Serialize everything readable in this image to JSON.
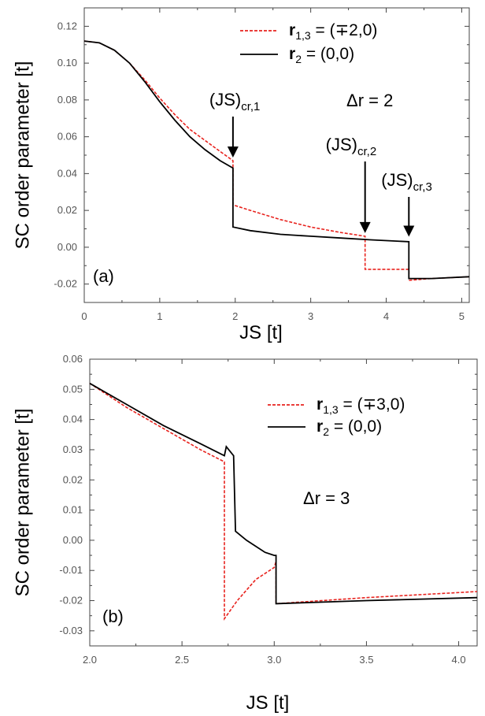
{
  "chart_data": [
    {
      "type": "line",
      "panel_label": "(a)",
      "xlabel": "JS [t]",
      "ylabel": "SC order parameter [t]",
      "xlim": [
        0,
        5.1
      ],
      "ylim": [
        -0.03,
        0.13
      ],
      "xticks": [
        0,
        1,
        2,
        3,
        4,
        5
      ],
      "yticks": [
        -0.02,
        0.0,
        0.02,
        0.04,
        0.06,
        0.08,
        0.1,
        0.12
      ],
      "ytick_labels": [
        "-0.02",
        "0.00",
        "0.02",
        "0.04",
        "0.06",
        "0.08",
        "0.10",
        "0.12"
      ],
      "grid": false,
      "legend_position": "top-right",
      "annotation": "Δr = 2",
      "arrows": [
        {
          "text": "(JS)",
          "sub": "cr,1",
          "x": 1.97,
          "y_tip": 0.047
        },
        {
          "text": "(JS)",
          "sub": "cr,2",
          "x": 3.72,
          "y_tip": 0.006
        },
        {
          "text": "(JS)",
          "sub": "cr,3",
          "x": 4.3,
          "y_tip": 0.004
        }
      ],
      "series": [
        {
          "name_bold": "r",
          "name_sub": "1,3",
          "name_rest": " = (∓2,0)",
          "color": "#e8231e",
          "dash": "dashed",
          "x": [
            0,
            0.2,
            0.4,
            0.6,
            0.8,
            1.0,
            1.2,
            1.4,
            1.6,
            1.8,
            1.97,
            1.97,
            2.2,
            2.6,
            3.0,
            3.4,
            3.72,
            3.72,
            4.3,
            4.3,
            4.6,
            5.1
          ],
          "y": [
            0.112,
            0.111,
            0.107,
            0.1,
            0.091,
            0.081,
            0.072,
            0.064,
            0.058,
            0.052,
            0.047,
            0.023,
            0.02,
            0.015,
            0.011,
            0.008,
            0.006,
            -0.012,
            -0.012,
            -0.018,
            -0.017,
            -0.016
          ]
        },
        {
          "name_bold": "r",
          "name_sub": "2",
          "name_rest": " = (0,0)",
          "color": "#000000",
          "dash": "solid",
          "x": [
            0,
            0.2,
            0.4,
            0.6,
            0.8,
            1.0,
            1.2,
            1.4,
            1.6,
            1.8,
            1.97,
            1.97,
            2.2,
            2.6,
            3.0,
            3.4,
            3.8,
            4.3,
            4.3,
            4.6,
            5.1
          ],
          "y": [
            0.112,
            0.111,
            0.107,
            0.1,
            0.09,
            0.079,
            0.069,
            0.06,
            0.053,
            0.047,
            0.043,
            0.011,
            0.009,
            0.007,
            0.006,
            0.005,
            0.004,
            0.003,
            -0.017,
            -0.017,
            -0.016
          ]
        }
      ]
    },
    {
      "type": "line",
      "panel_label": "(b)",
      "xlabel": "JS [t]",
      "ylabel": "SC order parameter [t]",
      "xlim": [
        2.0,
        4.1
      ],
      "ylim": [
        -0.035,
        0.06
      ],
      "xticks": [
        2.0,
        2.5,
        3.0,
        3.5,
        4.0
      ],
      "xtick_labels": [
        "2.0",
        "2.5",
        "3.0",
        "3.5",
        "4.0"
      ],
      "yticks": [
        -0.03,
        -0.02,
        -0.01,
        0.0,
        0.01,
        0.02,
        0.03,
        0.04,
        0.05,
        0.06
      ],
      "ytick_labels": [
        "-0.03",
        "-0.02",
        "-0.01",
        "0.00",
        "0.01",
        "0.02",
        "0.03",
        "0.04",
        "0.05",
        "0.06"
      ],
      "grid": false,
      "legend_position": "top-right",
      "annotation": "Δr = 3",
      "series": [
        {
          "name_bold": "r",
          "name_sub": "1,3",
          "name_rest": " = (∓3,0)",
          "color": "#e8231e",
          "dash": "dashed",
          "x": [
            2.0,
            2.2,
            2.4,
            2.6,
            2.73,
            2.73,
            2.8,
            2.9,
            3.0,
            3.01,
            3.01,
            3.5,
            4.1
          ],
          "y": [
            0.052,
            0.044,
            0.037,
            0.03,
            0.026,
            -0.026,
            -0.02,
            -0.013,
            -0.009,
            -0.007,
            -0.021,
            -0.019,
            -0.017
          ]
        },
        {
          "name_bold": "r",
          "name_sub": "2",
          "name_rest": " = (0,0)",
          "color": "#000000",
          "dash": "solid",
          "x": [
            2.0,
            2.2,
            2.4,
            2.6,
            2.73,
            2.74,
            2.78,
            2.79,
            2.85,
            2.95,
            3.0,
            3.01,
            3.01,
            3.5,
            4.1
          ],
          "y": [
            0.052,
            0.045,
            0.038,
            0.032,
            0.028,
            0.031,
            0.028,
            0.003,
            0.0,
            -0.004,
            -0.005,
            -0.005,
            -0.021,
            -0.02,
            -0.019
          ]
        }
      ]
    }
  ]
}
